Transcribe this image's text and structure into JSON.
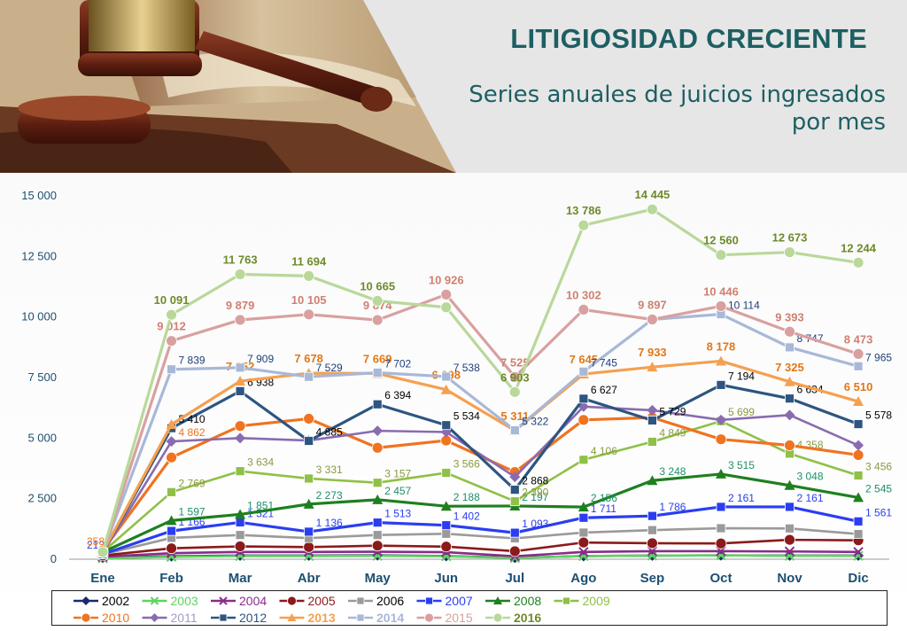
{
  "header": {
    "title": "LITIGIOSIDAD CRECIENTE",
    "subtitle": "Series anuales de juicios ingresados por mes"
  },
  "chart_data": {
    "type": "line",
    "title": "LITIGIOSIDAD CRECIENTE",
    "subtitle": "Series anuales de juicios ingresados por mes",
    "categories": [
      "Ene",
      "Feb",
      "Mar",
      "Abr",
      "May",
      "Jun",
      "Jul",
      "Ago",
      "Sep",
      "Oct",
      "Nov",
      "Dic"
    ],
    "y_ticks": [
      "0",
      "2 500",
      "5 000",
      "7 500",
      "10 000",
      "12 500",
      "15 000"
    ],
    "ylim": [
      0,
      15000
    ],
    "grid": false,
    "legend_position": "bottom",
    "series": [
      {
        "name": "2002",
        "color": "#1a2a6c",
        "marker": "diamond",
        "values": [
          60,
          120,
          150,
          150,
          160,
          130,
          60,
          130,
          150,
          160,
          150,
          150
        ],
        "labels": []
      },
      {
        "name": "2003",
        "color": "#5fd35f",
        "marker": "x",
        "values": [
          40,
          100,
          130,
          130,
          140,
          120,
          50,
          130,
          150,
          160,
          140,
          140
        ],
        "labels": []
      },
      {
        "name": "2004",
        "color": "#8a2b8a",
        "marker": "x",
        "values": [
          100,
          250,
          300,
          300,
          310,
          290,
          120,
          300,
          330,
          330,
          320,
          300
        ],
        "labels": []
      },
      {
        "name": "2005",
        "color": "#8b1a1a",
        "marker": "circle",
        "values": [
          150,
          450,
          530,
          500,
          560,
          520,
          330,
          690,
          660,
          650,
          800,
          780
        ],
        "labels": []
      },
      {
        "name": "2006",
        "color": "#9a9a9a",
        "marker": "square",
        "values": [
          200,
          880,
          1000,
          870,
          1000,
          1050,
          860,
          1100,
          1200,
          1280,
          1270,
          1040
        ],
        "labels": []
      },
      {
        "name": "2007",
        "color": "#2a3ef0",
        "marker": "square",
        "values": [
          212,
          1166,
          1521,
          1136,
          1513,
          1402,
          1093,
          1711,
          1786,
          2161,
          2161,
          1561
        ],
        "labels": [
          "212",
          "1 166",
          "1 521",
          "1 136",
          "1 513",
          "1 402",
          "1 093",
          "1 711",
          "1 786",
          "2 161",
          "2 161",
          "1 561"
        ]
      },
      {
        "name": "2008",
        "color": "#1f7f1f",
        "marker": "triangle",
        "values": [
          292,
          1597,
          1851,
          2273,
          2457,
          2188,
          2197,
          2156,
          3248,
          3515,
          3048,
          2545
        ],
        "labels": [
          "",
          "1 597",
          "1 851",
          "2 273",
          "2 457",
          "2 188",
          "2 197",
          "2 156",
          "3 248",
          "3 515",
          "3 048",
          "2 545"
        ]
      },
      {
        "name": "2009",
        "color": "#8fc047",
        "marker": "square",
        "values": [
          300,
          2769,
          3634,
          3331,
          3157,
          3566,
          2390,
          4106,
          4849,
          5699,
          4358,
          3456
        ],
        "labels": [
          "",
          "2 769",
          "3 634",
          "3 331",
          "3 157",
          "3 566",
          "2 390",
          "4 106",
          "4 849",
          "5 699",
          "4 358",
          "3 456"
        ]
      },
      {
        "name": "2010",
        "color": "#f07320",
        "marker": "circle",
        "values": [
          358,
          4200,
          5500,
          5800,
          4600,
          4900,
          3600,
          5750,
          5850,
          4950,
          4700,
          4300
        ],
        "labels": [
          "358",
          "",
          "",
          "",
          "",
          "",
          "",
          "",
          "",
          "",
          "",
          ""
        ]
      },
      {
        "name": "2011",
        "color": "#8a6bb0",
        "marker": "diamond",
        "values": [
          250,
          4862,
          5000,
          4900,
          5300,
          5250,
          3400,
          6300,
          6150,
          5750,
          5950,
          4700
        ],
        "labels": [
          "",
          "4 862",
          "",
          "",
          "",
          "",
          "",
          "",
          "",
          "",
          "",
          ""
        ]
      },
      {
        "name": "2012",
        "color": "#2d5580",
        "marker": "square",
        "values": [
          270,
          5410,
          6938,
          4885,
          6394,
          5534,
          2868,
          6627,
          5729,
          7194,
          6634,
          5578
        ],
        "labels": [
          "",
          "5 410",
          "6 938",
          "4 885",
          "6 394",
          "5 534",
          "2 868",
          "6 627",
          "5 729",
          "7 194",
          "6 634",
          "5 578"
        ]
      },
      {
        "name": "2013",
        "color": "#f5a050",
        "marker": "triangle",
        "values": [
          280,
          5562,
          7352,
          7678,
          7669,
          6998,
          5311,
          7645,
          7933,
          8178,
          7325,
          6510
        ],
        "labels": [
          "",
          "",
          "7 352",
          "7 678",
          "7 669",
          "6 998",
          "5 311",
          "7 645",
          "7 933",
          "8 178",
          "7 325",
          "6 510"
        ]
      },
      {
        "name": "2014",
        "color": "#a8b8d8",
        "marker": "square",
        "values": [
          285,
          7839,
          7909,
          7529,
          7702,
          7538,
          5322,
          7745,
          9897,
          10114,
          8747,
          7965
        ],
        "labels": [
          "",
          "7 839",
          "7 909",
          "7 529",
          "7 702",
          "7 538",
          "5 322",
          "7 745",
          "",
          "10 114",
          "8 747",
          "7 965"
        ]
      },
      {
        "name": "2015",
        "color": "#d9a0a0",
        "marker": "circle",
        "values": [
          290,
          9012,
          9879,
          10105,
          9874,
          10926,
          7525,
          10302,
          9897,
          10446,
          9393,
          8473
        ],
        "labels": [
          "",
          "9 012",
          "9 879",
          "10 105",
          "9 874",
          "10 926",
          "7 525",
          "10 302",
          "9 897",
          "10 446",
          "9 393",
          "8 473"
        ]
      },
      {
        "name": "2016",
        "color": "#b9d89a",
        "marker": "circle",
        "values": [
          295,
          10091,
          11763,
          11694,
          10665,
          10400,
          6903,
          13786,
          14445,
          12560,
          12673,
          12244
        ],
        "labels": [
          "",
          "10 091",
          "11 763",
          "11 694",
          "10 665",
          "",
          "6 903",
          "13 786",
          "14 445",
          "12 560",
          "12 673",
          "12 244"
        ]
      }
    ],
    "series_label_colors": {
      "2013": "#e07818",
      "2014": "#20407a",
      "2015": "#d08070",
      "2016": "#6e8a2a",
      "2007": "#2a3ef0",
      "2008": "#1f8f6a",
      "2009": "#8a9a40",
      "2012": "#000000",
      "2010": "#f07320",
      "2011": "#f07320"
    },
    "legend": [
      {
        "name": "2002",
        "bold": false,
        "label_color": "#000000"
      },
      {
        "name": "2003",
        "bold": false,
        "label_color": "#5fd35f"
      },
      {
        "name": "2004",
        "bold": false,
        "label_color": "#8a2b8a"
      },
      {
        "name": "2005",
        "bold": false,
        "label_color": "#8b1a1a"
      },
      {
        "name": "2006",
        "bold": false,
        "label_color": "#000000"
      },
      {
        "name": "2007",
        "bold": false,
        "label_color": "#2a3ef0"
      },
      {
        "name": "2008",
        "bold": false,
        "label_color": "#1f7f1f"
      },
      {
        "name": "2009",
        "bold": false,
        "label_color": "#8fc047"
      },
      {
        "name": "2010",
        "bold": false,
        "label_color": "#f07320"
      },
      {
        "name": "2011",
        "bold": false,
        "label_color": "#a89ac8"
      },
      {
        "name": "2012",
        "bold": false,
        "label_color": "#2d5580"
      },
      {
        "name": "2013",
        "bold": true,
        "label_color": "#f5a050"
      },
      {
        "name": "2014",
        "bold": true,
        "label_color": "#a8b8d8"
      },
      {
        "name": "2015",
        "bold": false,
        "label_color": "#d9a0a0"
      },
      {
        "name": "2016",
        "bold": true,
        "label_color": "#6e8a2a"
      }
    ]
  }
}
